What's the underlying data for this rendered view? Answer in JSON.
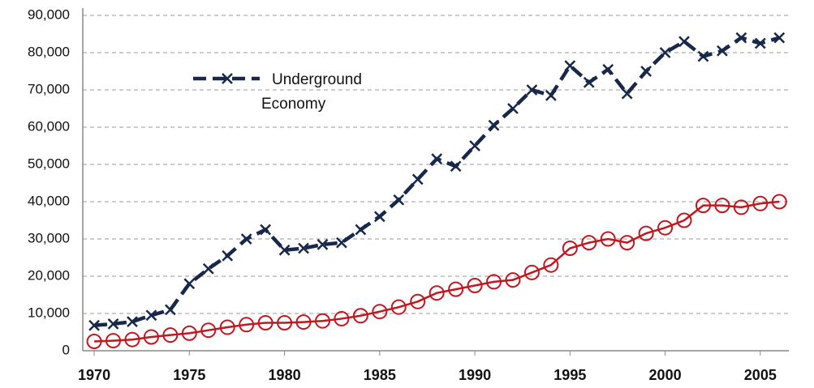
{
  "chart_data": {
    "type": "line",
    "x": [
      1970,
      1971,
      1972,
      1973,
      1974,
      1975,
      1976,
      1977,
      1978,
      1979,
      1980,
      1981,
      1982,
      1983,
      1984,
      1985,
      1986,
      1987,
      1988,
      1989,
      1990,
      1991,
      1992,
      1993,
      1994,
      1995,
      1996,
      1997,
      1998,
      1999,
      2000,
      2001,
      2002,
      2003,
      2004,
      2005,
      2006
    ],
    "series": [
      {
        "name": "Underground Economy",
        "color": "#17284a",
        "values": [
          6800,
          7200,
          7800,
          9500,
          11000,
          18000,
          22000,
          25500,
          30000,
          32500,
          27000,
          27500,
          28500,
          29000,
          32500,
          36000,
          40500,
          46000,
          51500,
          49500,
          55000,
          60500,
          65000,
          70000,
          68500,
          76500,
          72000,
          75500,
          69000,
          75000,
          80000,
          83000,
          79000,
          80500,
          84000,
          82500,
          84000
        ]
      },
      {
        "color": "#c0181f",
        "values": [
          2500,
          2700,
          3000,
          3700,
          4200,
          4700,
          5500,
          6300,
          7000,
          7500,
          7500,
          7700,
          8000,
          8600,
          9400,
          10500,
          11700,
          13200,
          15500,
          16500,
          17500,
          18500,
          19000,
          21000,
          23000,
          27500,
          29000,
          30000,
          29000,
          31500,
          33000,
          35000,
          39000,
          39000,
          38500,
          39500,
          40000
        ]
      }
    ],
    "xlim": [
      1969.4,
      2006.5
    ],
    "xticks": [
      1970,
      1975,
      1980,
      1985,
      1990,
      1995,
      2000,
      2005
    ],
    "ylim": [
      0,
      90000
    ],
    "yticks": [
      0,
      {
        "value": 10000,
        "label": "10,000"
      },
      {
        "value": 20000,
        "label": "20,000"
      },
      {
        "value": 30000,
        "label": "30,000"
      },
      {
        "value": 40000,
        "label": "40,000"
      },
      {
        "value": 50000,
        "label": "50,000"
      },
      {
        "value": 60000,
        "label": "60,000"
      },
      {
        "value": 70000,
        "label": "70,000"
      },
      {
        "value": 80000,
        "label": "80,000"
      },
      {
        "value": 90000,
        "label": "90,000"
      }
    ],
    "grid": true
  }
}
